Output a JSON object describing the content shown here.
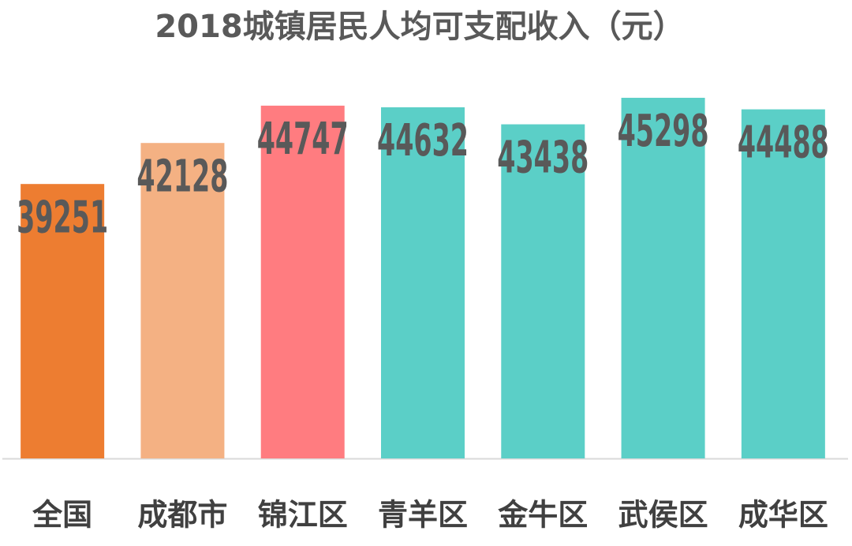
{
  "chart_data": {
    "type": "bar",
    "title": "2018城镇居民人均可支配收入（元）",
    "categories": [
      "全国",
      "成都市",
      "锦江区",
      "青羊区",
      "金牛区",
      "武侯区",
      "成华区"
    ],
    "values": [
      39251,
      42128,
      44747,
      44632,
      43438,
      45298,
      44488
    ],
    "colors": [
      "#ed7d31",
      "#f4b183",
      "#ff7c80",
      "#5bcfc7",
      "#5bcfc7",
      "#5bcfc7",
      "#5bcfc7"
    ],
    "ylim": [
      20000,
      50000
    ]
  }
}
